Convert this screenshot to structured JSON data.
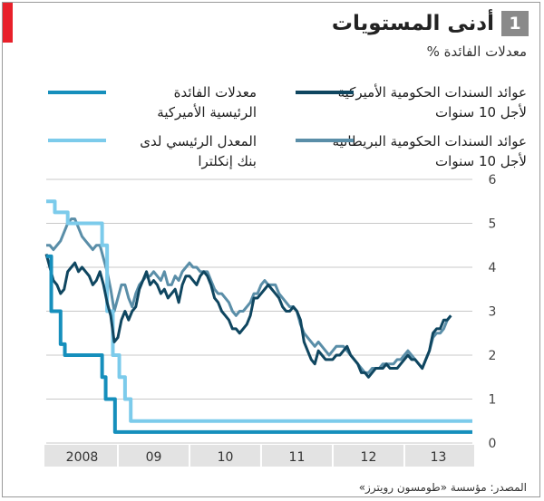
{
  "header": {
    "number": "1",
    "title": "أدنى المستويات"
  },
  "subtitle": "معدلات الفائدة %",
  "legend": [
    {
      "label": "عوائد السندات الحكومية الأميركية لأجل 10 سنوات",
      "color": "#0f4660"
    },
    {
      "label": "عوائد السندات الحكومية البريطانية لأجل 10 سنوات",
      "color": "#5a8ea8"
    },
    {
      "label": "معدلات الفائدة الرئيسية الأميركية",
      "color": "#168fbc"
    },
    {
      "label": "المعدل الرئيسي لدى بنك إنكلترا",
      "color": "#7ccbeb"
    }
  ],
  "source": "المصدر: مؤسسة «طومسون رويترز»",
  "chart_data": {
    "type": "line",
    "x_tick_labels": [
      "2008",
      "09",
      "10",
      "11",
      "12",
      "13"
    ],
    "y_ticks": [
      0,
      1,
      2,
      3,
      4,
      5,
      6
    ],
    "ylim": [
      0,
      6
    ],
    "xlim": [
      2008.0,
      2013.95
    ],
    "grid": "horizontal",
    "y_axis_side": "right",
    "series": [
      {
        "name": "عوائد السندات الحكومية الأميركية لأجل 10 سنوات",
        "color": "#0f4660",
        "points": [
          [
            2008.0,
            4.3
          ],
          [
            2008.05,
            4.0
          ],
          [
            2008.1,
            3.7
          ],
          [
            2008.15,
            3.6
          ],
          [
            2008.2,
            3.4
          ],
          [
            2008.25,
            3.5
          ],
          [
            2008.3,
            3.9
          ],
          [
            2008.35,
            4.0
          ],
          [
            2008.4,
            4.1
          ],
          [
            2008.45,
            3.9
          ],
          [
            2008.5,
            4.0
          ],
          [
            2008.55,
            3.9
          ],
          [
            2008.6,
            3.8
          ],
          [
            2008.65,
            3.6
          ],
          [
            2008.7,
            3.7
          ],
          [
            2008.75,
            3.9
          ],
          [
            2008.8,
            3.6
          ],
          [
            2008.85,
            3.2
          ],
          [
            2008.9,
            2.9
          ],
          [
            2008.95,
            2.3
          ],
          [
            2009.0,
            2.4
          ],
          [
            2009.05,
            2.8
          ],
          [
            2009.1,
            3.0
          ],
          [
            2009.15,
            2.8
          ],
          [
            2009.2,
            3.0
          ],
          [
            2009.25,
            3.1
          ],
          [
            2009.3,
            3.5
          ],
          [
            2009.35,
            3.7
          ],
          [
            2009.4,
            3.9
          ],
          [
            2009.45,
            3.6
          ],
          [
            2009.5,
            3.7
          ],
          [
            2009.55,
            3.6
          ],
          [
            2009.6,
            3.4
          ],
          [
            2009.65,
            3.5
          ],
          [
            2009.7,
            3.3
          ],
          [
            2009.75,
            3.4
          ],
          [
            2009.8,
            3.5
          ],
          [
            2009.85,
            3.2
          ],
          [
            2009.9,
            3.6
          ],
          [
            2009.95,
            3.8
          ],
          [
            2010.0,
            3.8
          ],
          [
            2010.05,
            3.7
          ],
          [
            2010.1,
            3.6
          ],
          [
            2010.15,
            3.8
          ],
          [
            2010.2,
            3.9
          ],
          [
            2010.25,
            3.8
          ],
          [
            2010.3,
            3.6
          ],
          [
            2010.35,
            3.3
          ],
          [
            2010.4,
            3.2
          ],
          [
            2010.45,
            3.0
          ],
          [
            2010.5,
            2.9
          ],
          [
            2010.55,
            2.8
          ],
          [
            2010.6,
            2.6
          ],
          [
            2010.65,
            2.6
          ],
          [
            2010.7,
            2.5
          ],
          [
            2010.75,
            2.6
          ],
          [
            2010.8,
            2.7
          ],
          [
            2010.85,
            2.9
          ],
          [
            2010.9,
            3.3
          ],
          [
            2010.95,
            3.3
          ],
          [
            2011.0,
            3.4
          ],
          [
            2011.05,
            3.5
          ],
          [
            2011.1,
            3.6
          ],
          [
            2011.15,
            3.5
          ],
          [
            2011.2,
            3.4
          ],
          [
            2011.25,
            3.3
          ],
          [
            2011.3,
            3.1
          ],
          [
            2011.35,
            3.0
          ],
          [
            2011.4,
            3.0
          ],
          [
            2011.45,
            3.1
          ],
          [
            2011.5,
            3.0
          ],
          [
            2011.55,
            2.8
          ],
          [
            2011.6,
            2.3
          ],
          [
            2011.65,
            2.1
          ],
          [
            2011.7,
            1.9
          ],
          [
            2011.75,
            1.8
          ],
          [
            2011.8,
            2.1
          ],
          [
            2011.85,
            2.0
          ],
          [
            2011.9,
            1.9
          ],
          [
            2011.95,
            1.9
          ],
          [
            2012.0,
            1.9
          ],
          [
            2012.05,
            2.0
          ],
          [
            2012.1,
            2.0
          ],
          [
            2012.15,
            2.1
          ],
          [
            2012.2,
            2.2
          ],
          [
            2012.25,
            2.0
          ],
          [
            2012.3,
            1.9
          ],
          [
            2012.35,
            1.8
          ],
          [
            2012.4,
            1.6
          ],
          [
            2012.45,
            1.6
          ],
          [
            2012.5,
            1.5
          ],
          [
            2012.55,
            1.6
          ],
          [
            2012.6,
            1.7
          ],
          [
            2012.65,
            1.7
          ],
          [
            2012.7,
            1.7
          ],
          [
            2012.75,
            1.8
          ],
          [
            2012.8,
            1.7
          ],
          [
            2012.85,
            1.7
          ],
          [
            2012.9,
            1.7
          ],
          [
            2012.95,
            1.8
          ],
          [
            2013.0,
            1.9
          ],
          [
            2013.05,
            2.0
          ],
          [
            2013.1,
            1.9
          ],
          [
            2013.15,
            1.9
          ],
          [
            2013.2,
            1.8
          ],
          [
            2013.25,
            1.7
          ],
          [
            2013.3,
            1.9
          ],
          [
            2013.35,
            2.1
          ],
          [
            2013.4,
            2.5
          ],
          [
            2013.45,
            2.6
          ],
          [
            2013.5,
            2.6
          ],
          [
            2013.55,
            2.8
          ],
          [
            2013.6,
            2.8
          ],
          [
            2013.65,
            2.9
          ]
        ]
      },
      {
        "name": "عوائد السندات الحكومية البريطانية لأجل 10 سنوات",
        "color": "#5a8ea8",
        "points": [
          [
            2008.0,
            4.5
          ],
          [
            2008.05,
            4.5
          ],
          [
            2008.1,
            4.4
          ],
          [
            2008.15,
            4.5
          ],
          [
            2008.2,
            4.6
          ],
          [
            2008.25,
            4.8
          ],
          [
            2008.3,
            5.0
          ],
          [
            2008.35,
            5.1
          ],
          [
            2008.4,
            5.1
          ],
          [
            2008.45,
            4.9
          ],
          [
            2008.5,
            4.7
          ],
          [
            2008.55,
            4.6
          ],
          [
            2008.6,
            4.5
          ],
          [
            2008.65,
            4.4
          ],
          [
            2008.7,
            4.5
          ],
          [
            2008.75,
            4.5
          ],
          [
            2008.8,
            4.2
          ],
          [
            2008.85,
            3.9
          ],
          [
            2008.9,
            3.5
          ],
          [
            2008.95,
            3.0
          ],
          [
            2009.0,
            3.3
          ],
          [
            2009.05,
            3.6
          ],
          [
            2009.1,
            3.6
          ],
          [
            2009.15,
            3.3
          ],
          [
            2009.2,
            3.1
          ],
          [
            2009.25,
            3.4
          ],
          [
            2009.3,
            3.6
          ],
          [
            2009.35,
            3.7
          ],
          [
            2009.4,
            3.8
          ],
          [
            2009.45,
            3.8
          ],
          [
            2009.5,
            3.9
          ],
          [
            2009.55,
            3.8
          ],
          [
            2009.6,
            3.7
          ],
          [
            2009.65,
            3.9
          ],
          [
            2009.7,
            3.6
          ],
          [
            2009.75,
            3.6
          ],
          [
            2009.8,
            3.8
          ],
          [
            2009.85,
            3.7
          ],
          [
            2009.9,
            3.9
          ],
          [
            2009.95,
            4.0
          ],
          [
            2010.0,
            4.1
          ],
          [
            2010.05,
            4.0
          ],
          [
            2010.1,
            4.0
          ],
          [
            2010.15,
            3.9
          ],
          [
            2010.2,
            3.9
          ],
          [
            2010.25,
            3.9
          ],
          [
            2010.3,
            3.7
          ],
          [
            2010.35,
            3.5
          ],
          [
            2010.4,
            3.4
          ],
          [
            2010.45,
            3.4
          ],
          [
            2010.5,
            3.3
          ],
          [
            2010.55,
            3.2
          ],
          [
            2010.6,
            3.0
          ],
          [
            2010.65,
            2.9
          ],
          [
            2010.7,
            3.0
          ],
          [
            2010.75,
            3.0
          ],
          [
            2010.8,
            3.1
          ],
          [
            2010.85,
            3.2
          ],
          [
            2010.9,
            3.4
          ],
          [
            2010.95,
            3.4
          ],
          [
            2011.0,
            3.6
          ],
          [
            2011.05,
            3.7
          ],
          [
            2011.1,
            3.6
          ],
          [
            2011.15,
            3.6
          ],
          [
            2011.2,
            3.6
          ],
          [
            2011.25,
            3.4
          ],
          [
            2011.3,
            3.3
          ],
          [
            2011.35,
            3.2
          ],
          [
            2011.4,
            3.1
          ],
          [
            2011.45,
            3.1
          ],
          [
            2011.5,
            3.0
          ],
          [
            2011.55,
            2.7
          ],
          [
            2011.6,
            2.5
          ],
          [
            2011.65,
            2.4
          ],
          [
            2011.7,
            2.3
          ],
          [
            2011.75,
            2.2
          ],
          [
            2011.8,
            2.3
          ],
          [
            2011.85,
            2.2
          ],
          [
            2011.9,
            2.1
          ],
          [
            2011.95,
            2.0
          ],
          [
            2012.0,
            2.1
          ],
          [
            2012.05,
            2.2
          ],
          [
            2012.1,
            2.2
          ],
          [
            2012.15,
            2.2
          ],
          [
            2012.2,
            2.1
          ],
          [
            2012.25,
            2.0
          ],
          [
            2012.3,
            1.9
          ],
          [
            2012.35,
            1.8
          ],
          [
            2012.4,
            1.7
          ],
          [
            2012.45,
            1.6
          ],
          [
            2012.5,
            1.6
          ],
          [
            2012.55,
            1.7
          ],
          [
            2012.6,
            1.7
          ],
          [
            2012.65,
            1.7
          ],
          [
            2012.7,
            1.8
          ],
          [
            2012.75,
            1.8
          ],
          [
            2012.8,
            1.8
          ],
          [
            2012.85,
            1.8
          ],
          [
            2012.9,
            1.9
          ],
          [
            2012.95,
            1.9
          ],
          [
            2013.0,
            2.0
          ],
          [
            2013.05,
            2.1
          ],
          [
            2013.1,
            2.0
          ],
          [
            2013.15,
            1.9
          ],
          [
            2013.2,
            1.8
          ],
          [
            2013.25,
            1.7
          ],
          [
            2013.3,
            1.9
          ],
          [
            2013.35,
            2.1
          ],
          [
            2013.4,
            2.4
          ],
          [
            2013.45,
            2.5
          ],
          [
            2013.5,
            2.5
          ],
          [
            2013.55,
            2.6
          ],
          [
            2013.6,
            2.8
          ],
          [
            2013.65,
            2.9
          ]
        ]
      },
      {
        "name": "معدلات الفائدة الرئيسية الأميركية",
        "color": "#168fbc",
        "points": [
          [
            2008.0,
            4.25
          ],
          [
            2008.07,
            3.0
          ],
          [
            2008.2,
            2.25
          ],
          [
            2008.26,
            2.0
          ],
          [
            2008.78,
            1.5
          ],
          [
            2008.83,
            1.0
          ],
          [
            2008.96,
            0.25
          ],
          [
            2013.95,
            0.25
          ]
        ],
        "step": true
      },
      {
        "name": "المعدل الرئيسي لدى بنك إنكلترا",
        "color": "#7ccbeb",
        "points": [
          [
            2008.0,
            5.5
          ],
          [
            2008.12,
            5.25
          ],
          [
            2008.3,
            5.0
          ],
          [
            2008.78,
            4.5
          ],
          [
            2008.85,
            3.0
          ],
          [
            2008.93,
            2.0
          ],
          [
            2009.02,
            1.5
          ],
          [
            2009.1,
            1.0
          ],
          [
            2009.18,
            0.5
          ],
          [
            2013.95,
            0.5
          ]
        ],
        "step": true
      }
    ]
  }
}
